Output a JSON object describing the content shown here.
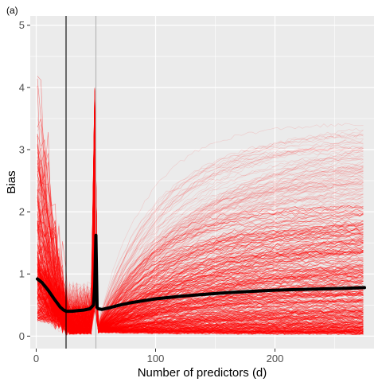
{
  "chart_data": {
    "type": "line",
    "panel_label": "(a)",
    "title": "",
    "xlabel": "Number of predictors (d)",
    "ylabel": "Bias",
    "xlim": [
      -5,
      283
    ],
    "ylim": [
      -0.2,
      5.15
    ],
    "x_ticks": [
      0,
      100,
      200
    ],
    "y_ticks": [
      0,
      1,
      2,
      3,
      4,
      5
    ],
    "grid": true,
    "background": "#ebebeb",
    "grid_color": "#ffffff",
    "individual_series": {
      "description_color": "#ff0000",
      "count_shown": 400,
      "x_range": [
        1,
        275
      ],
      "notes": "many individual simulation curves"
    },
    "vertical_lines": [
      {
        "x": 25,
        "color": "#000000"
      },
      {
        "x": 50,
        "color": "#b3b3b3"
      }
    ],
    "mean_series": {
      "color": "#000000",
      "x": [
        1,
        5,
        10,
        15,
        20,
        23,
        25,
        30,
        35,
        40,
        45,
        48,
        49,
        50,
        51,
        52,
        55,
        60,
        70,
        80,
        100,
        120,
        140,
        160,
        180,
        200,
        220,
        240,
        260,
        275
      ],
      "y": [
        0.92,
        0.86,
        0.74,
        0.6,
        0.47,
        0.42,
        0.4,
        0.4,
        0.41,
        0.42,
        0.44,
        0.5,
        0.8,
        1.62,
        0.46,
        0.44,
        0.43,
        0.45,
        0.5,
        0.54,
        0.6,
        0.64,
        0.67,
        0.7,
        0.72,
        0.74,
        0.75,
        0.76,
        0.77,
        0.78
      ]
    }
  }
}
